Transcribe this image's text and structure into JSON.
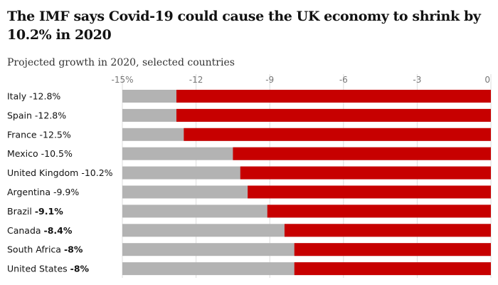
{
  "title": "The IMF says Covid-19 could cause the UK economy to shrink by 10.2% in 2020",
  "subtitle": "Projected growth in 2020, selected countries",
  "colors": {
    "negative_bar": "#c70000",
    "background_bar": "#b3b3b3",
    "gridline": "#dcdcdc",
    "text": "#121212",
    "tick_text": "#767676"
  },
  "chart_data": {
    "type": "bar",
    "orientation": "horizontal",
    "title": "The IMF says Covid-19 could cause the UK economy to shrink by 10.2% in 2020",
    "subtitle": "Projected growth in 2020, selected countries",
    "xlim": [
      -15,
      0
    ],
    "ticks": [
      -15,
      -12,
      -9,
      -6,
      -3,
      0
    ],
    "tick_labels": [
      "-15%",
      "-12",
      "-9",
      "-6",
      "-3",
      "0"
    ],
    "grid": true,
    "categories": [
      "Italy",
      "Spain",
      "France",
      "Mexico",
      "United Kingdom",
      "Argentina",
      "Brazil",
      "Canada",
      "South Africa",
      "United States"
    ],
    "values": [
      -12.8,
      -12.8,
      -12.5,
      -10.5,
      -10.2,
      -9.9,
      -9.1,
      -8.4,
      -8,
      -8
    ],
    "value_labels": [
      "-12.8%",
      "-12.8%",
      "-12.5%",
      "-10.5%",
      "-10.2%",
      "-9.9%",
      "-9.1%",
      "-8.4%",
      "-8%",
      "-8%"
    ],
    "value_label_bold": [
      false,
      false,
      false,
      false,
      false,
      false,
      true,
      true,
      true,
      true
    ]
  }
}
